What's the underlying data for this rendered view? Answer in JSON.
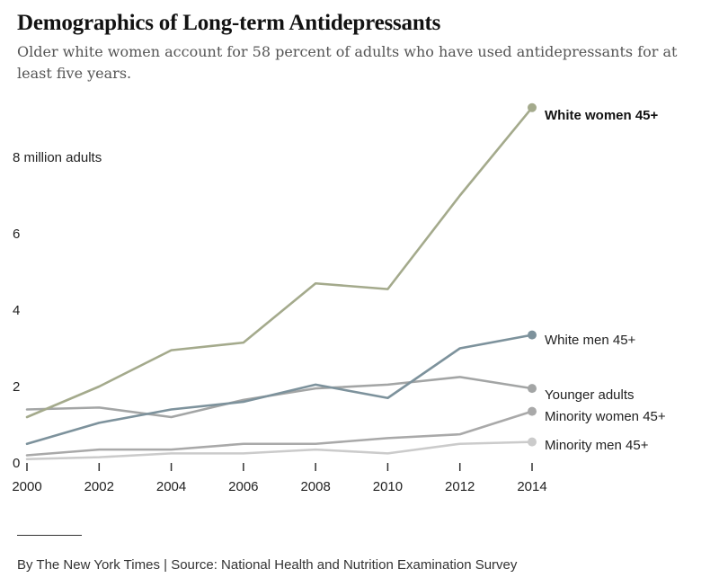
{
  "title": "Demographics of Long-term Antidepressants",
  "subtitle": "Older white women account for 58 percent of adults who have used antidepressants for at least five years.",
  "footer": "By The New York Times | Source: National Health and Nutrition Examination Survey",
  "chart_data": {
    "type": "line",
    "title": "Demographics of Long-term Antidepressants",
    "xlabel": "",
    "ylabel": "",
    "x": [
      2000,
      2002,
      2004,
      2006,
      2008,
      2010,
      2012,
      2014
    ],
    "x_tick_labels": [
      "2000",
      "2002",
      "2004",
      "2006",
      "2008",
      "2010",
      "2012",
      "2014"
    ],
    "y_ticks": [
      0,
      2,
      4,
      6,
      8
    ],
    "y_tick_labels": [
      "0",
      "2",
      "4",
      "6",
      "8 million adults"
    ],
    "ylim": [
      0,
      9.4
    ],
    "grid": false,
    "series": [
      {
        "name": "White women 45+",
        "color": "#a4aa8c",
        "bold": true,
        "values": [
          1.2,
          2.0,
          2.95,
          3.15,
          4.7,
          4.55,
          7.0,
          9.3
        ]
      },
      {
        "name": "White men 45+",
        "color": "#7d929c",
        "bold": false,
        "values": [
          0.5,
          1.05,
          1.4,
          1.6,
          2.05,
          1.7,
          3.0,
          3.35
        ]
      },
      {
        "name": "Younger adults",
        "color": "#a3a5a5",
        "bold": false,
        "values": [
          1.4,
          1.45,
          1.2,
          1.65,
          1.95,
          2.05,
          2.25,
          1.95
        ]
      },
      {
        "name": "Minority women 45+",
        "color": "#a9a9a9",
        "bold": false,
        "values": [
          0.2,
          0.35,
          0.35,
          0.5,
          0.5,
          0.65,
          0.75,
          1.35
        ]
      },
      {
        "name": "Minority men 45+",
        "color": "#cbcbcb",
        "bold": false,
        "values": [
          0.1,
          0.15,
          0.25,
          0.25,
          0.35,
          0.25,
          0.5,
          0.55
        ]
      }
    ]
  }
}
